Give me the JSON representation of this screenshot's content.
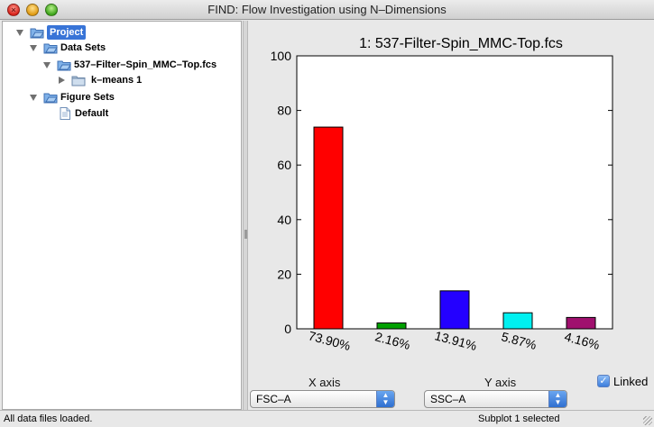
{
  "window": {
    "title": "FIND: Flow Investigation using N–Dimensions"
  },
  "tree": {
    "project": "Project",
    "data_sets": "Data Sets",
    "file": "537–Filter–Spin_MMC–Top.fcs",
    "kmeans": "k–means 1",
    "figure_sets": "Figure Sets",
    "default": "Default"
  },
  "chart_data": {
    "type": "bar",
    "title": "1: 537-Filter-Spin_MMC-Top.fcs",
    "categories": [
      "73.90%",
      "2.16%",
      "13.91%",
      "5.87%",
      "4.16%"
    ],
    "values": [
      73.9,
      2.16,
      13.91,
      5.87,
      4.16
    ],
    "colors": [
      "#ff0000",
      "#00a000",
      "#2400ff",
      "#00f0f0",
      "#a0106e"
    ],
    "ylim": [
      0,
      100
    ],
    "yticks": [
      "0",
      "20",
      "40",
      "60",
      "80",
      "100"
    ],
    "ytick_values": [
      0,
      20,
      40,
      60,
      80,
      100
    ],
    "xlabel": "",
    "ylabel": ""
  },
  "controls": {
    "x_axis_label": "X axis",
    "y_axis_label": "Y axis",
    "x_axis_value": "FSC–A",
    "y_axis_value": "SSC–A",
    "linked_label": "Linked",
    "linked_checked": true
  },
  "status": {
    "left": "All data files loaded.",
    "right": "Subplot 1 selected"
  }
}
